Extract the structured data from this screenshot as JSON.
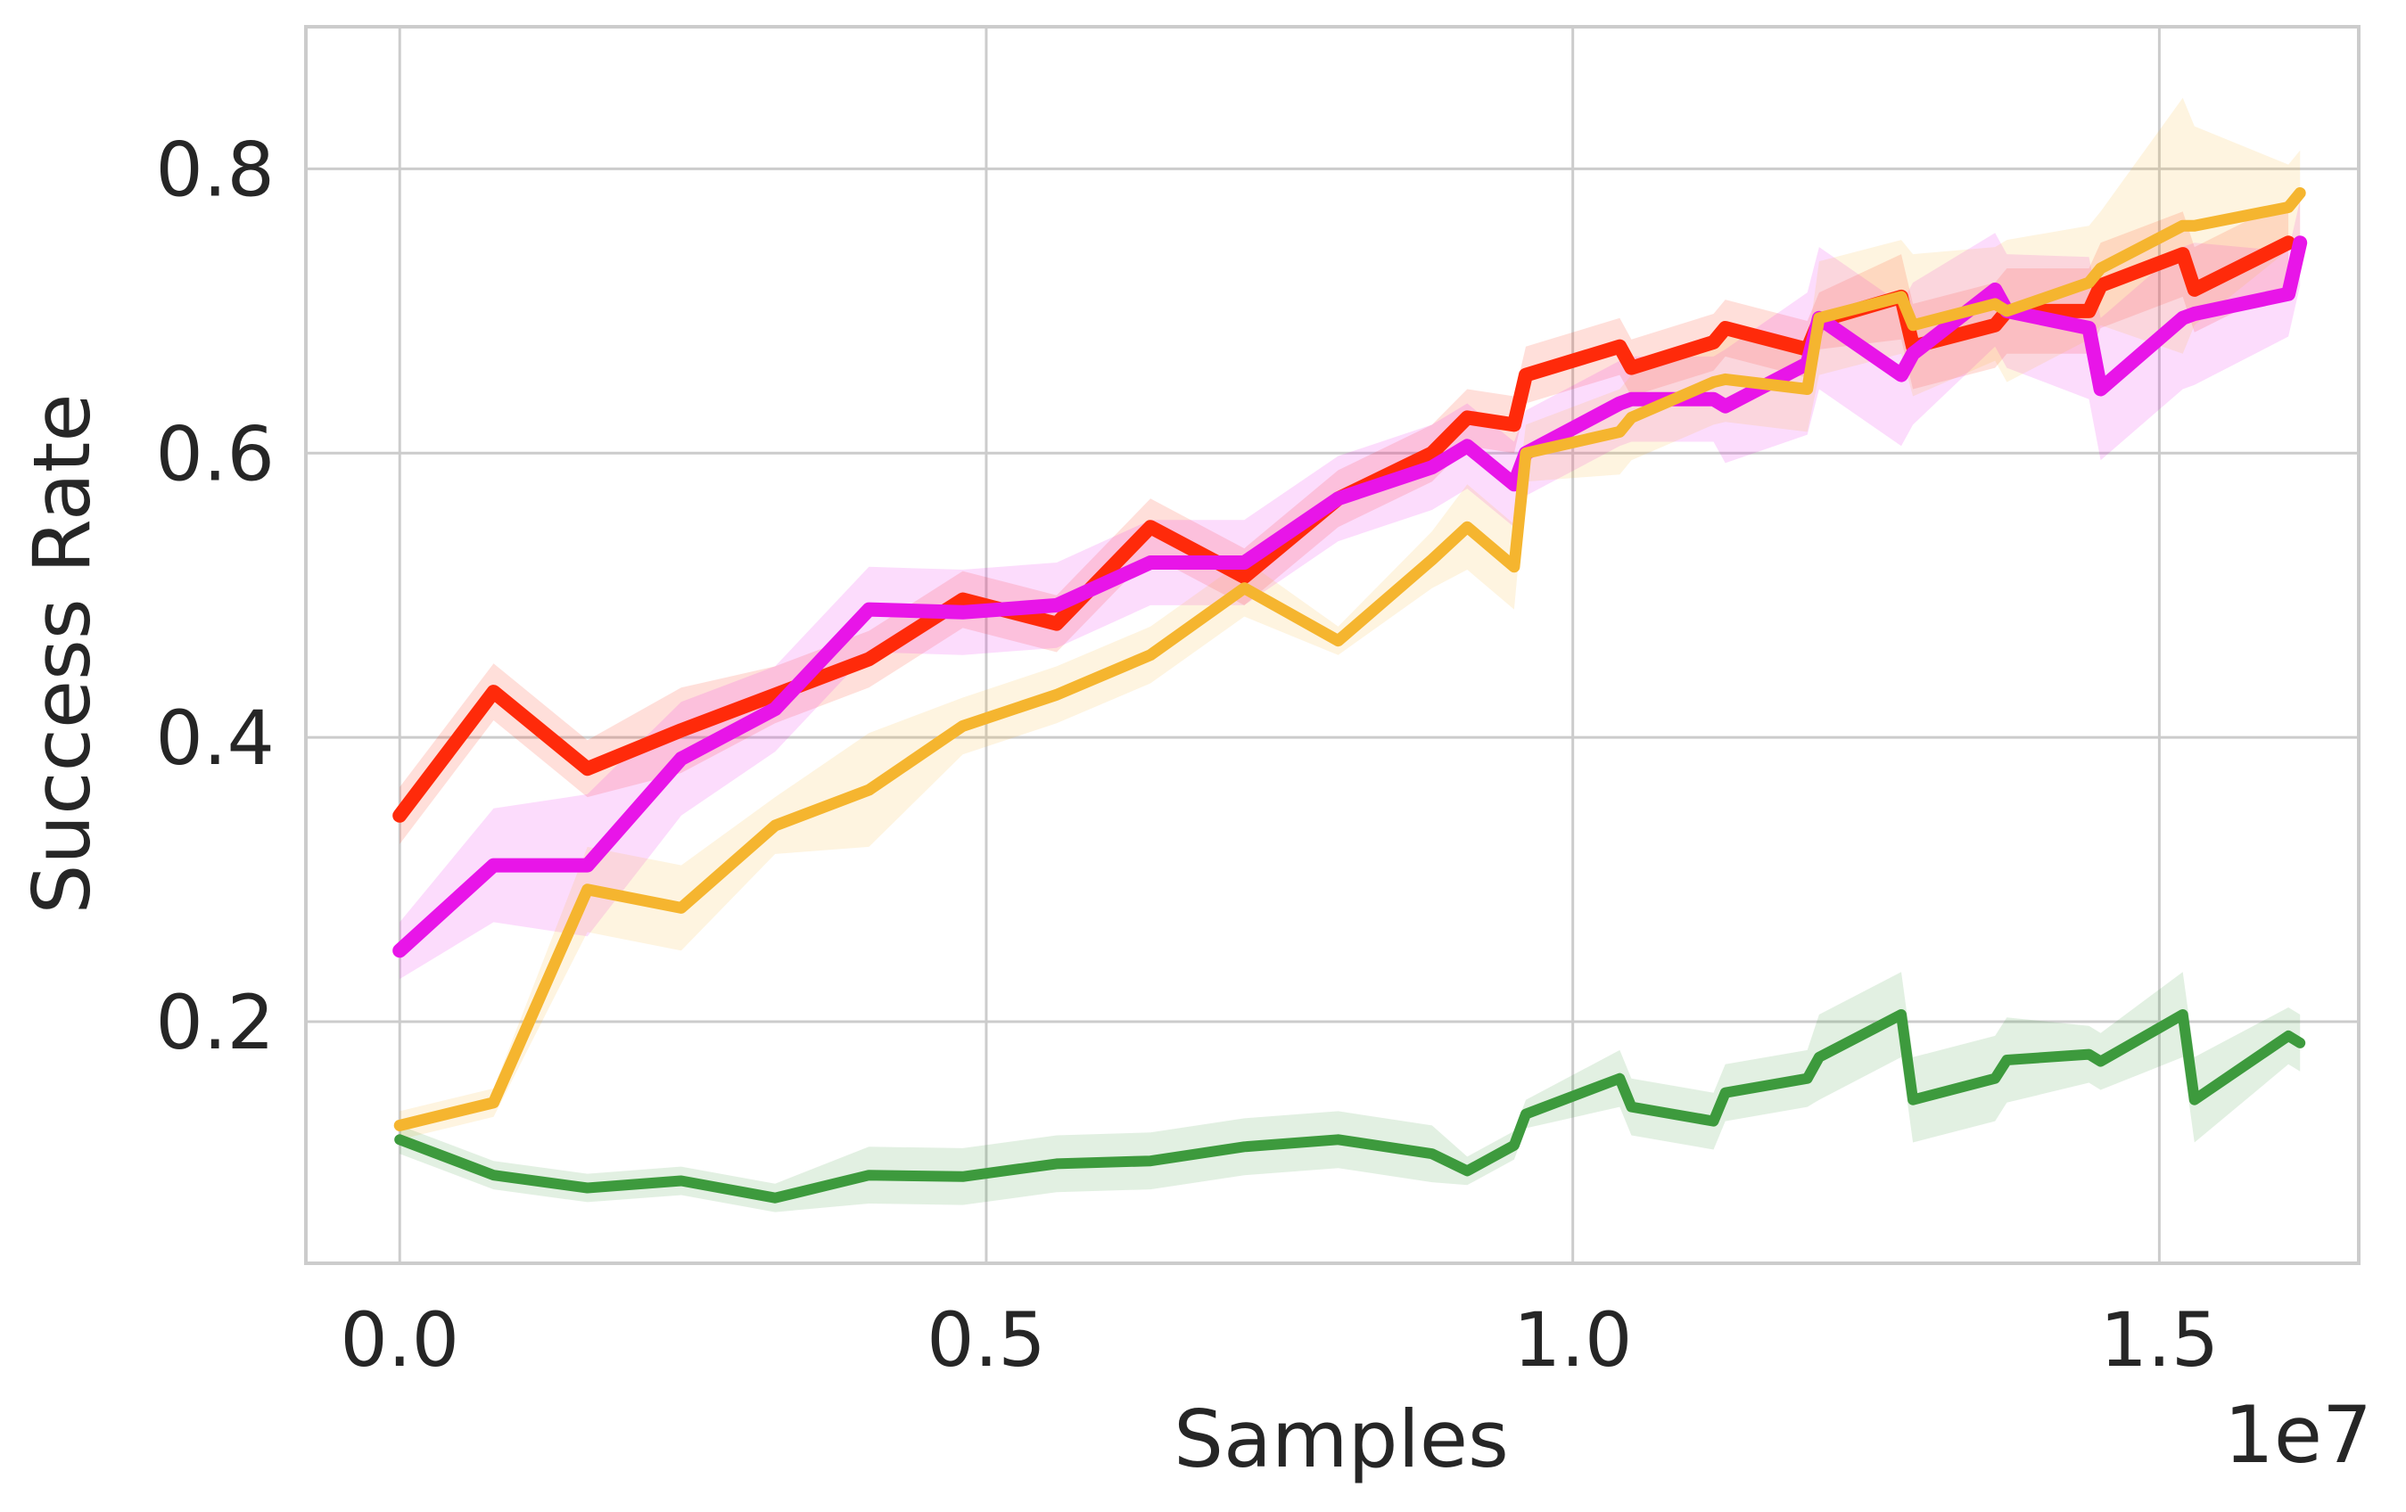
{
  "chart_data": {
    "type": "line",
    "title": "",
    "xlabel": "Samples",
    "ylabel": "Success Rate",
    "x_offset_label": "1e7",
    "xlim": [
      -0.08,
      1.67
    ],
    "ylim": [
      0.03,
      0.9
    ],
    "x_ticks": [
      0.0,
      0.5,
      1.0,
      1.5
    ],
    "x_tick_labels": [
      "0.0",
      "0.5",
      "1.0",
      "1.5"
    ],
    "y_ticks": [
      0.2,
      0.4,
      0.6,
      0.8
    ],
    "y_tick_labels": [
      "0.2",
      "0.4",
      "0.6",
      "0.8"
    ],
    "grid": true,
    "legend": "none",
    "series": [
      {
        "color": "#FF2A0A",
        "x": [
          0.0,
          0.08,
          0.16,
          0.24,
          0.32,
          0.4,
          0.48,
          0.56,
          0.64,
          0.72,
          0.8,
          0.88,
          0.91,
          0.95,
          0.96,
          1.04,
          1.05,
          1.12,
          1.13,
          1.2,
          1.21,
          1.28,
          1.29,
          1.36,
          1.37,
          1.44,
          1.45,
          1.52,
          1.53,
          1.61
        ],
        "y": [
          0.345,
          0.432,
          0.378,
          0.405,
          0.43,
          0.455,
          0.497,
          0.48,
          0.548,
          0.513,
          0.568,
          0.6,
          0.625,
          0.62,
          0.655,
          0.675,
          0.66,
          0.678,
          0.688,
          0.673,
          0.693,
          0.71,
          0.675,
          0.69,
          0.7,
          0.7,
          0.718,
          0.74,
          0.715,
          0.748
        ],
        "band": [
          0.02,
          0.02,
          0.02,
          0.03,
          0.02,
          0.02,
          0.02,
          0.02,
          0.02,
          0.02,
          0.02,
          0.02,
          0.02,
          0.02,
          0.02,
          0.02,
          0.02,
          0.02,
          0.02,
          0.02,
          0.02,
          0.03,
          0.03,
          0.03,
          0.03,
          0.03,
          0.03,
          0.03,
          0.03,
          0.03
        ]
      },
      {
        "color": "#E815E8",
        "x": [
          0.0,
          0.08,
          0.16,
          0.24,
          0.32,
          0.4,
          0.48,
          0.56,
          0.64,
          0.72,
          0.8,
          0.88,
          0.91,
          0.95,
          0.96,
          1.04,
          1.05,
          1.12,
          1.13,
          1.2,
          1.21,
          1.28,
          1.29,
          1.36,
          1.37,
          1.44,
          1.45,
          1.52,
          1.53,
          1.61,
          1.62
        ],
        "y": [
          0.25,
          0.31,
          0.31,
          0.385,
          0.42,
          0.49,
          0.488,
          0.493,
          0.523,
          0.523,
          0.568,
          0.59,
          0.605,
          0.578,
          0.6,
          0.635,
          0.638,
          0.638,
          0.633,
          0.663,
          0.695,
          0.655,
          0.67,
          0.715,
          0.7,
          0.688,
          0.645,
          0.695,
          0.698,
          0.712,
          0.748
        ],
        "band": [
          0.02,
          0.04,
          0.05,
          0.04,
          0.03,
          0.03,
          0.03,
          0.03,
          0.03,
          0.03,
          0.03,
          0.03,
          0.03,
          0.03,
          0.03,
          0.03,
          0.03,
          0.03,
          0.04,
          0.05,
          0.05,
          0.05,
          0.05,
          0.04,
          0.04,
          0.05,
          0.05,
          0.05,
          0.05,
          0.03,
          0.03
        ]
      },
      {
        "color": "#F5B52F",
        "x": [
          0.0,
          0.08,
          0.16,
          0.24,
          0.32,
          0.4,
          0.48,
          0.56,
          0.64,
          0.72,
          0.8,
          0.88,
          0.91,
          0.95,
          0.96,
          1.04,
          1.05,
          1.12,
          1.13,
          1.2,
          1.21,
          1.28,
          1.29,
          1.36,
          1.37,
          1.44,
          1.45,
          1.52,
          1.53,
          1.61,
          1.62
        ],
        "y": [
          0.127,
          0.143,
          0.293,
          0.28,
          0.338,
          0.363,
          0.408,
          0.43,
          0.458,
          0.505,
          0.468,
          0.525,
          0.548,
          0.52,
          0.6,
          0.615,
          0.625,
          0.65,
          0.652,
          0.645,
          0.695,
          0.71,
          0.69,
          0.705,
          0.7,
          0.72,
          0.73,
          0.76,
          0.76,
          0.773,
          0.783
        ],
        "band": [
          0.01,
          0.01,
          0.03,
          0.03,
          0.02,
          0.04,
          0.02,
          0.02,
          0.02,
          0.02,
          0.01,
          0.02,
          0.03,
          0.03,
          0.02,
          0.03,
          0.03,
          0.03,
          0.03,
          0.03,
          0.04,
          0.04,
          0.05,
          0.04,
          0.05,
          0.04,
          0.04,
          0.09,
          0.07,
          0.03,
          0.03
        ]
      },
      {
        "color": "#3D9A3D",
        "x": [
          0.0,
          0.08,
          0.16,
          0.24,
          0.32,
          0.4,
          0.48,
          0.56,
          0.64,
          0.72,
          0.8,
          0.88,
          0.91,
          0.95,
          0.96,
          1.04,
          1.05,
          1.12,
          1.13,
          1.2,
          1.21,
          1.28,
          1.29,
          1.36,
          1.37,
          1.44,
          1.45,
          1.52,
          1.53,
          1.61,
          1.62
        ],
        "y": [
          0.117,
          0.092,
          0.083,
          0.088,
          0.076,
          0.092,
          0.091,
          0.1,
          0.102,
          0.112,
          0.117,
          0.107,
          0.095,
          0.113,
          0.135,
          0.16,
          0.14,
          0.13,
          0.15,
          0.16,
          0.175,
          0.205,
          0.145,
          0.16,
          0.173,
          0.177,
          0.172,
          0.205,
          0.145,
          0.19,
          0.185
        ],
        "band": [
          0.01,
          0.01,
          0.01,
          0.01,
          0.01,
          0.02,
          0.02,
          0.02,
          0.02,
          0.02,
          0.02,
          0.02,
          0.01,
          0.01,
          0.01,
          0.02,
          0.02,
          0.02,
          0.02,
          0.02,
          0.03,
          0.03,
          0.03,
          0.03,
          0.03,
          0.02,
          0.02,
          0.03,
          0.03,
          0.02,
          0.02
        ]
      }
    ]
  }
}
